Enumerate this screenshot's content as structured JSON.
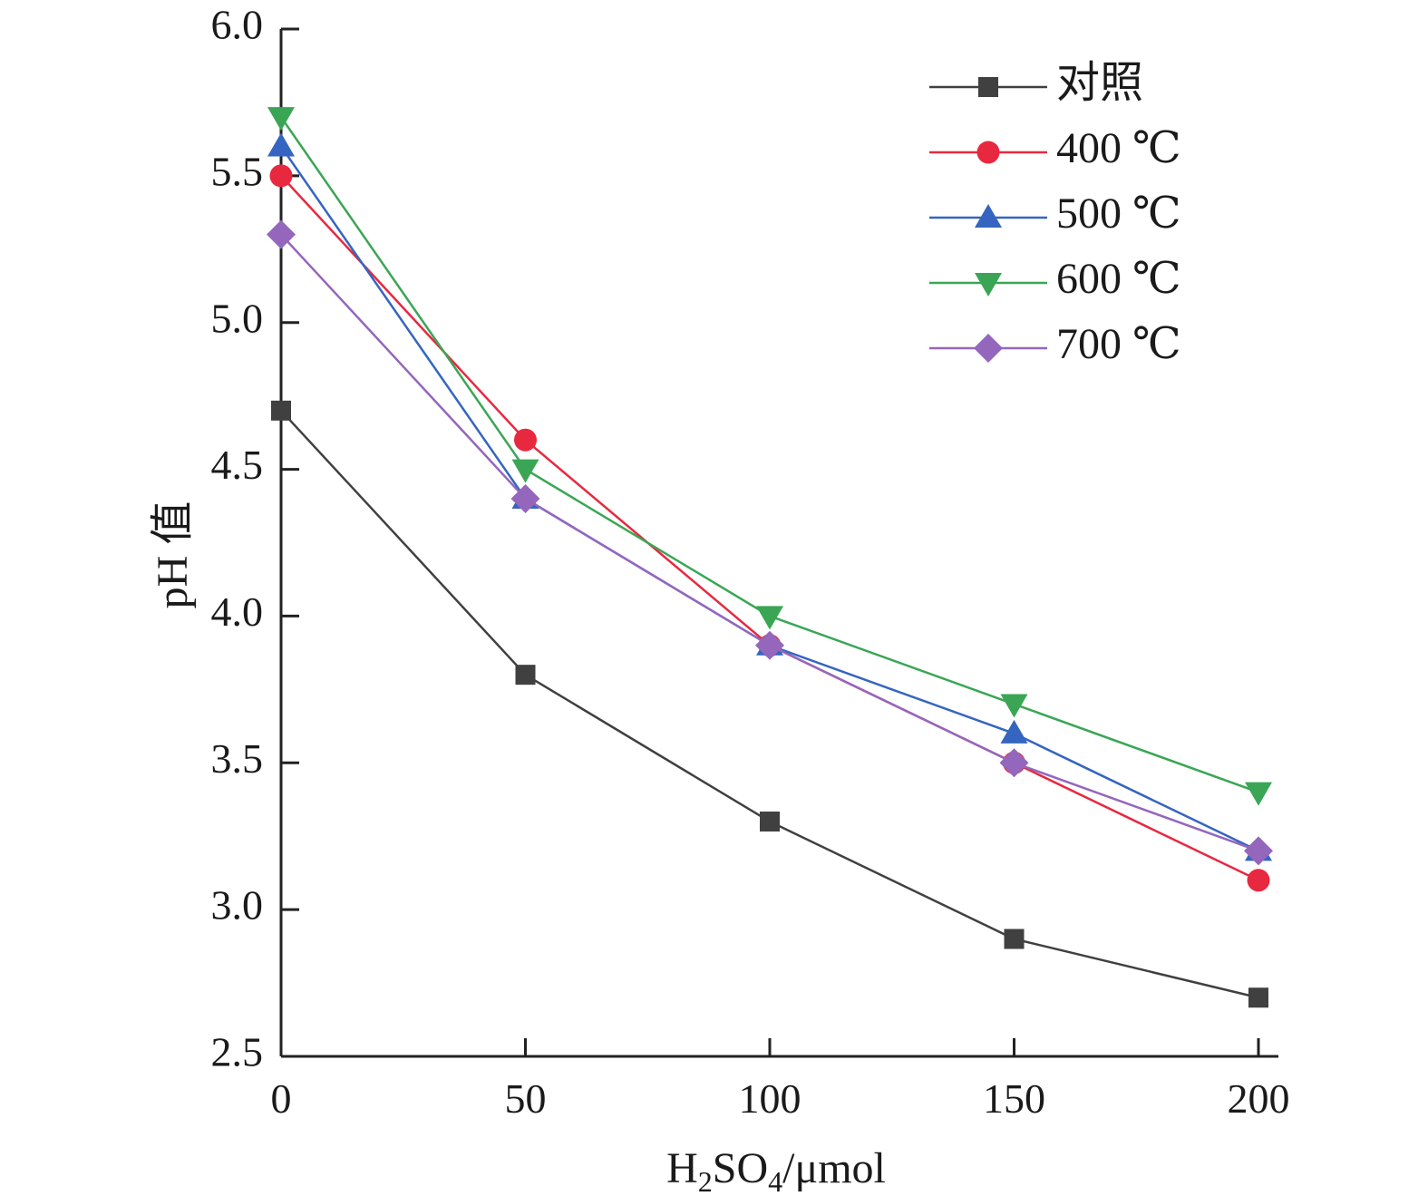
{
  "chart_data": {
    "type": "line",
    "x": [
      0,
      50,
      100,
      150,
      200
    ],
    "xlim": [
      0,
      200
    ],
    "ylim": [
      2.5,
      6.0
    ],
    "xticks": [
      "0",
      "50",
      "100",
      "150",
      "200"
    ],
    "yticks": [
      "2.5",
      "3.0",
      "3.5",
      "4.0",
      "4.5",
      "5.0",
      "5.5",
      "6.0"
    ],
    "xlabel": "H2SO4/μmol",
    "xlabel_parts": {
      "h": "H",
      "sub1": "2",
      "so": "SO",
      "sub2": "4",
      "unit": "/μmol"
    },
    "ylabel": "pH 值",
    "grid": false,
    "legend_position": "top-right",
    "series": [
      {
        "name": "对照",
        "marker": "square",
        "color": "#404040",
        "values": [
          4.7,
          3.8,
          3.3,
          2.9,
          2.7
        ]
      },
      {
        "name": "400 ℃",
        "marker": "circle",
        "color": "#e8283f",
        "values": [
          5.5,
          4.6,
          3.9,
          3.5,
          3.1
        ]
      },
      {
        "name": "500 ℃",
        "marker": "triangle-up",
        "color": "#3565c0",
        "values": [
          5.6,
          4.4,
          3.9,
          3.6,
          3.2
        ]
      },
      {
        "name": "600 ℃",
        "marker": "triangle-down",
        "color": "#3aa655",
        "values": [
          5.7,
          4.5,
          4.0,
          3.7,
          3.4
        ]
      },
      {
        "name": "700 ℃",
        "marker": "diamond",
        "color": "#9467bd",
        "values": [
          5.3,
          4.4,
          3.9,
          3.5,
          3.2
        ]
      }
    ]
  }
}
